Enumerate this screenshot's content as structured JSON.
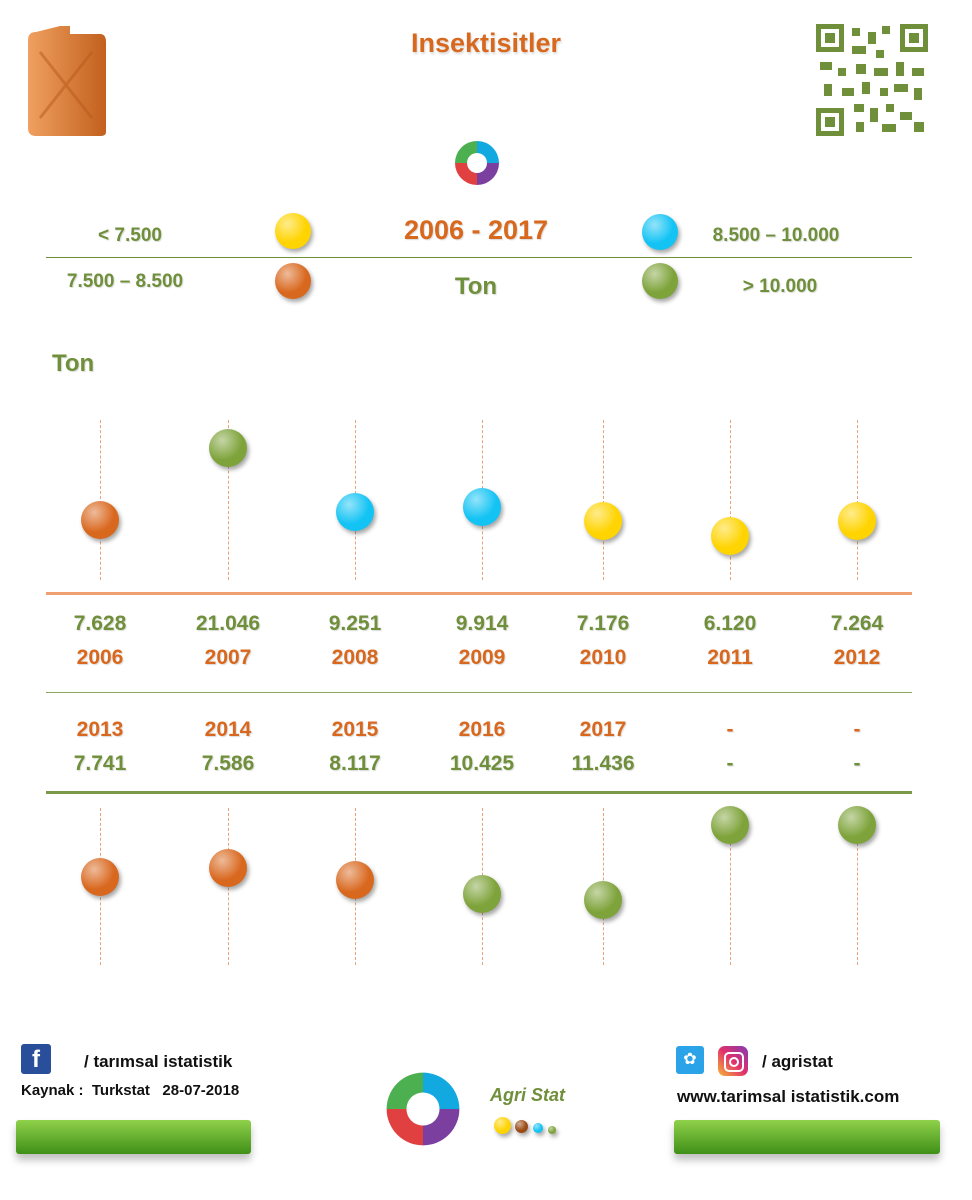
{
  "header": {
    "title": "Insektisitler"
  },
  "legend": {
    "period": "2006 - 2017",
    "unit": "Ton",
    "items": [
      {
        "label": "< 7.500",
        "color": "#ffd400"
      },
      {
        "label": "7.500 – 8.500",
        "color": "#d9681f"
      },
      {
        "label": "8.500 – 10.000",
        "color": "#12c3f4"
      },
      {
        "label": "> 10.000",
        "color": "#7ea33a"
      }
    ]
  },
  "chart_data": {
    "type": "scatter",
    "ylabel": "Ton",
    "series": [
      {
        "categories": [
          "2006",
          "2007",
          "2008",
          "2009",
          "2010",
          "2011",
          "2012"
        ],
        "values": [
          7628,
          21046,
          9251,
          9914,
          7176,
          6120,
          7264
        ],
        "value_labels": [
          "7.628",
          "21.046",
          "9.251",
          "9.914",
          "7.176",
          "6.120",
          "7.264"
        ],
        "colors": [
          "#d9681f",
          "#7ea33a",
          "#12c3f4",
          "#12c3f4",
          "#ffd400",
          "#ffd400",
          "#ffd400"
        ]
      },
      {
        "categories": [
          "2013",
          "2014",
          "2015",
          "2016",
          "2017",
          "-",
          "-"
        ],
        "values": [
          7741,
          7586,
          8117,
          10425,
          11436,
          13000,
          13000
        ],
        "value_labels": [
          "7.741",
          "7.586",
          "8.117",
          "10.425",
          "11.436",
          "-",
          "-"
        ],
        "colors": [
          "#d9681f",
          "#d9681f",
          "#d9681f",
          "#7ea33a",
          "#7ea33a",
          "#7ea33a",
          "#7ea33a"
        ]
      }
    ]
  },
  "footer": {
    "facebook": "/ tarımsal istatistik",
    "source": "Kaynak :  Turkstat   28-07-2018",
    "brand": "Agri Stat",
    "social": "/ agristat",
    "website": "www.tarimsal istatistik.com"
  }
}
